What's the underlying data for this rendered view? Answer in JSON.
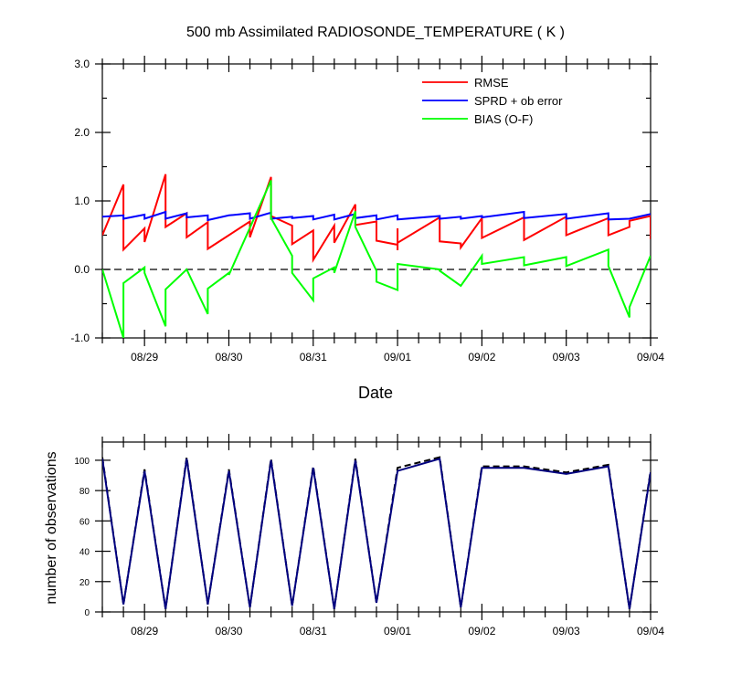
{
  "chart_data": [
    {
      "type": "line",
      "title": "500 mb Assimilated RADIOSONDE_TEMPERATURE ( K )",
      "xlabel": "Date",
      "ylabel": "",
      "xlim": [
        "08/28 12:00",
        "09/04 00:00"
      ],
      "ylim": [
        -1.0,
        3.0
      ],
      "x_tick_labels": [
        "08/29",
        "08/30",
        "08/31",
        "09/01",
        "09/02",
        "09/03",
        "09/04"
      ],
      "y_tick_labels": [
        "-1.0",
        "0.0",
        "1.0",
        "2.0",
        "3.0"
      ],
      "y_ticks": [
        -1.0,
        0.0,
        1.0,
        2.0,
        3.0
      ],
      "legend_position": "top-right",
      "reference_line": {
        "y": 0.0,
        "style": "dashed"
      },
      "series": [
        {
          "name": "RMSE",
          "color": "#ff0000",
          "points": [
            [
              "08/28 12:00",
              0.5
            ],
            [
              "08/28 18:00",
              1.24
            ],
            [
              "08/28 18:00",
              0.29
            ],
            [
              "08/29 00:00",
              0.6
            ],
            [
              "08/29 00:00",
              0.4
            ],
            [
              "08/29 06:00",
              1.39
            ],
            [
              "08/29 06:00",
              0.62
            ],
            [
              "08/29 12:00",
              0.82
            ],
            [
              "08/29 12:00",
              0.47
            ],
            [
              "08/29 18:00",
              0.69
            ],
            [
              "08/29 18:00",
              0.3
            ],
            [
              "08/30 00:00",
              0.5
            ],
            [
              "08/30 06:00",
              0.7
            ],
            [
              "08/30 06:00",
              0.47
            ],
            [
              "08/30 12:00",
              1.35
            ],
            [
              "08/30 12:00",
              0.78
            ],
            [
              "08/30 18:00",
              0.64
            ],
            [
              "08/30 18:00",
              0.37
            ],
            [
              "08/31 00:00",
              0.57
            ],
            [
              "08/31 00:00",
              0.14
            ],
            [
              "08/31 06:00",
              0.64
            ],
            [
              "08/31 06:00",
              0.39
            ],
            [
              "08/31 12:00",
              0.95
            ],
            [
              "08/31 12:00",
              0.65
            ],
            [
              "08/31 18:00",
              0.7
            ],
            [
              "08/31 18:00",
              0.42
            ],
            [
              "09/01 00:00",
              0.36
            ],
            [
              "09/01 00:00",
              0.28
            ],
            [
              "09/01 00:00",
              0.6
            ],
            [
              "09/01 00:00",
              0.39
            ],
            [
              "09/01 12:00",
              0.76
            ],
            [
              "09/01 12:00",
              0.41
            ],
            [
              "09/01 18:00",
              0.38
            ],
            [
              "09/01 18:00",
              0.32
            ],
            [
              "09/02 00:00",
              0.75
            ],
            [
              "09/02 00:00",
              0.46
            ],
            [
              "09/02 12:00",
              0.76
            ],
            [
              "09/02 12:00",
              0.43
            ],
            [
              "09/03 00:00",
              0.77
            ],
            [
              "09/03 00:00",
              0.5
            ],
            [
              "09/03 12:00",
              0.75
            ],
            [
              "09/03 12:00",
              0.5
            ],
            [
              "09/03 18:00",
              0.62
            ],
            [
              "09/03 18:00",
              0.71
            ],
            [
              "09/04 00:00",
              0.78
            ],
            [
              "09/04 00:00",
              0.44
            ]
          ]
        },
        {
          "name": "SPRD + ob error",
          "color": "#0000ff",
          "points": [
            [
              "08/28 12:00",
              0.77
            ],
            [
              "08/28 18:00",
              0.79
            ],
            [
              "08/28 18:00",
              0.74
            ],
            [
              "08/29 00:00",
              0.8
            ],
            [
              "08/29 00:00",
              0.74
            ],
            [
              "08/29 06:00",
              0.84
            ],
            [
              "08/29 06:00",
              0.74
            ],
            [
              "08/29 12:00",
              0.82
            ],
            [
              "08/29 12:00",
              0.76
            ],
            [
              "08/29 18:00",
              0.79
            ],
            [
              "08/29 18:00",
              0.72
            ],
            [
              "08/30 00:00",
              0.79
            ],
            [
              "08/30 06:00",
              0.82
            ],
            [
              "08/30 06:00",
              0.74
            ],
            [
              "08/30 12:00",
              0.83
            ],
            [
              "08/30 12:00",
              0.74
            ],
            [
              "08/30 18:00",
              0.77
            ],
            [
              "08/30 18:00",
              0.75
            ],
            [
              "08/31 00:00",
              0.78
            ],
            [
              "08/31 00:00",
              0.73
            ],
            [
              "08/31 06:00",
              0.8
            ],
            [
              "08/31 06:00",
              0.73
            ],
            [
              "08/31 12:00",
              0.81
            ],
            [
              "08/31 12:00",
              0.75
            ],
            [
              "08/31 18:00",
              0.79
            ],
            [
              "08/31 18:00",
              0.73
            ],
            [
              "09/01 00:00",
              0.79
            ],
            [
              "09/01 00:00",
              0.73
            ],
            [
              "09/01 12:00",
              0.78
            ],
            [
              "09/01 12:00",
              0.74
            ],
            [
              "09/01 18:00",
              0.77
            ],
            [
              "09/01 18:00",
              0.74
            ],
            [
              "09/02 00:00",
              0.78
            ],
            [
              "09/02 00:00",
              0.76
            ],
            [
              "09/02 12:00",
              0.84
            ],
            [
              "09/02 12:00",
              0.75
            ],
            [
              "09/03 00:00",
              0.81
            ],
            [
              "09/03 00:00",
              0.74
            ],
            [
              "09/03 12:00",
              0.82
            ],
            [
              "09/03 12:00",
              0.73
            ],
            [
              "09/03 18:00",
              0.74
            ],
            [
              "09/03 18:00",
              0.74
            ],
            [
              "09/04 00:00",
              0.81
            ]
          ]
        },
        {
          "name": "BIAS (O-F)",
          "color": "#00ff00",
          "points": [
            [
              "08/28 12:00",
              0.0
            ],
            [
              "08/28 18:00",
              -1.0
            ],
            [
              "08/28 18:00",
              -0.2
            ],
            [
              "08/29 00:00",
              0.03
            ],
            [
              "08/29 00:00",
              -0.05
            ],
            [
              "08/29 06:00",
              -0.83
            ],
            [
              "08/29 06:00",
              -0.29
            ],
            [
              "08/29 12:00",
              0.0
            ],
            [
              "08/29 12:00",
              0.0
            ],
            [
              "08/29 18:00",
              -0.65
            ],
            [
              "08/29 18:00",
              -0.28
            ],
            [
              "08/30 00:00",
              -0.05
            ],
            [
              "08/30 00:00",
              -0.08
            ],
            [
              "08/30 12:00",
              1.3
            ],
            [
              "08/30 12:00",
              0.75
            ],
            [
              "08/30 18:00",
              0.2
            ],
            [
              "08/30 18:00",
              -0.05
            ],
            [
              "08/31 00:00",
              -0.45
            ],
            [
              "08/31 00:00",
              -0.13
            ],
            [
              "08/31 06:00",
              0.03
            ],
            [
              "08/31 06:00",
              -0.05
            ],
            [
              "08/31 12:00",
              0.85
            ],
            [
              "08/31 12:00",
              0.62
            ],
            [
              "08/31 18:00",
              -0.02
            ],
            [
              "08/31 18:00",
              -0.18
            ],
            [
              "09/01 00:00",
              -0.3
            ],
            [
              "09/01 00:00",
              -0.08
            ],
            [
              "09/01 00:00",
              0.08
            ],
            [
              "09/01 12:00",
              0.0
            ],
            [
              "09/01 12:00",
              -0.02
            ],
            [
              "09/01 18:00",
              -0.24
            ],
            [
              "09/02 00:00",
              0.2
            ],
            [
              "09/02 00:00",
              0.08
            ],
            [
              "09/02 12:00",
              0.18
            ],
            [
              "09/02 12:00",
              0.06
            ],
            [
              "09/03 00:00",
              0.18
            ],
            [
              "09/03 00:00",
              0.05
            ],
            [
              "09/03 12:00",
              0.29
            ],
            [
              "09/03 12:00",
              0.05
            ],
            [
              "09/03 18:00",
              -0.7
            ],
            [
              "09/03 18:00",
              -0.55
            ],
            [
              "09/04 00:00",
              0.2
            ]
          ]
        }
      ]
    },
    {
      "type": "line",
      "title": "",
      "xlabel": "",
      "ylabel": "number of observations",
      "xlim": [
        "08/28 12:00",
        "09/04 00:00"
      ],
      "ylim": [
        0,
        112
      ],
      "x_tick_labels": [
        "08/29",
        "08/30",
        "08/31",
        "09/01",
        "09/02",
        "09/03",
        "09/04"
      ],
      "y_tick_labels": [
        "0",
        "20",
        "40",
        "60",
        "80",
        "100"
      ],
      "y_ticks": [
        0,
        20,
        40,
        60,
        80,
        100
      ],
      "series": [
        {
          "color": "#000000",
          "style": "dashed",
          "points": [
            [
              "08/28 12:00",
              102
            ],
            [
              "08/28 18:00",
              5
            ],
            [
              "08/29 00:00",
              94
            ],
            [
              "08/29 06:00",
              2
            ],
            [
              "08/29 12:00",
              102
            ],
            [
              "08/29 18:00",
              5
            ],
            [
              "08/30 00:00",
              94
            ],
            [
              "08/30 06:00",
              3
            ],
            [
              "08/30 12:00",
              101
            ],
            [
              "08/30 18:00",
              4
            ],
            [
              "08/31 00:00",
              96
            ],
            [
              "08/31 06:00",
              2
            ],
            [
              "08/31 12:00",
              101
            ],
            [
              "08/31 18:00",
              6
            ],
            [
              "09/01 00:00",
              95
            ],
            [
              "09/01 12:00",
              102
            ],
            [
              "09/01 18:00",
              3
            ],
            [
              "09/02 00:00",
              96
            ],
            [
              "09/02 12:00",
              96
            ],
            [
              "09/03 00:00",
              92
            ],
            [
              "09/03 12:00",
              97
            ],
            [
              "09/03 18:00",
              2
            ],
            [
              "09/04 00:00",
              93
            ]
          ]
        },
        {
          "color": "#00007f",
          "style": "solid",
          "points": [
            [
              "08/28 12:00",
              101
            ],
            [
              "08/28 18:00",
              5
            ],
            [
              "08/29 00:00",
              93
            ],
            [
              "08/29 06:00",
              2
            ],
            [
              "08/29 12:00",
              101
            ],
            [
              "08/29 18:00",
              5
            ],
            [
              "08/30 00:00",
              93
            ],
            [
              "08/30 06:00",
              3
            ],
            [
              "08/30 12:00",
              100
            ],
            [
              "08/30 18:00",
              4
            ],
            [
              "08/31 00:00",
              95
            ],
            [
              "08/31 06:00",
              2
            ],
            [
              "08/31 12:00",
              100
            ],
            [
              "08/31 18:00",
              6
            ],
            [
              "09/01 00:00",
              93
            ],
            [
              "09/01 12:00",
              101
            ],
            [
              "09/01 18:00",
              3
            ],
            [
              "09/02 00:00",
              95
            ],
            [
              "09/02 12:00",
              95
            ],
            [
              "09/03 00:00",
              91
            ],
            [
              "09/03 12:00",
              96
            ],
            [
              "09/03 18:00",
              2
            ],
            [
              "09/04 00:00",
              92
            ]
          ]
        }
      ]
    }
  ]
}
